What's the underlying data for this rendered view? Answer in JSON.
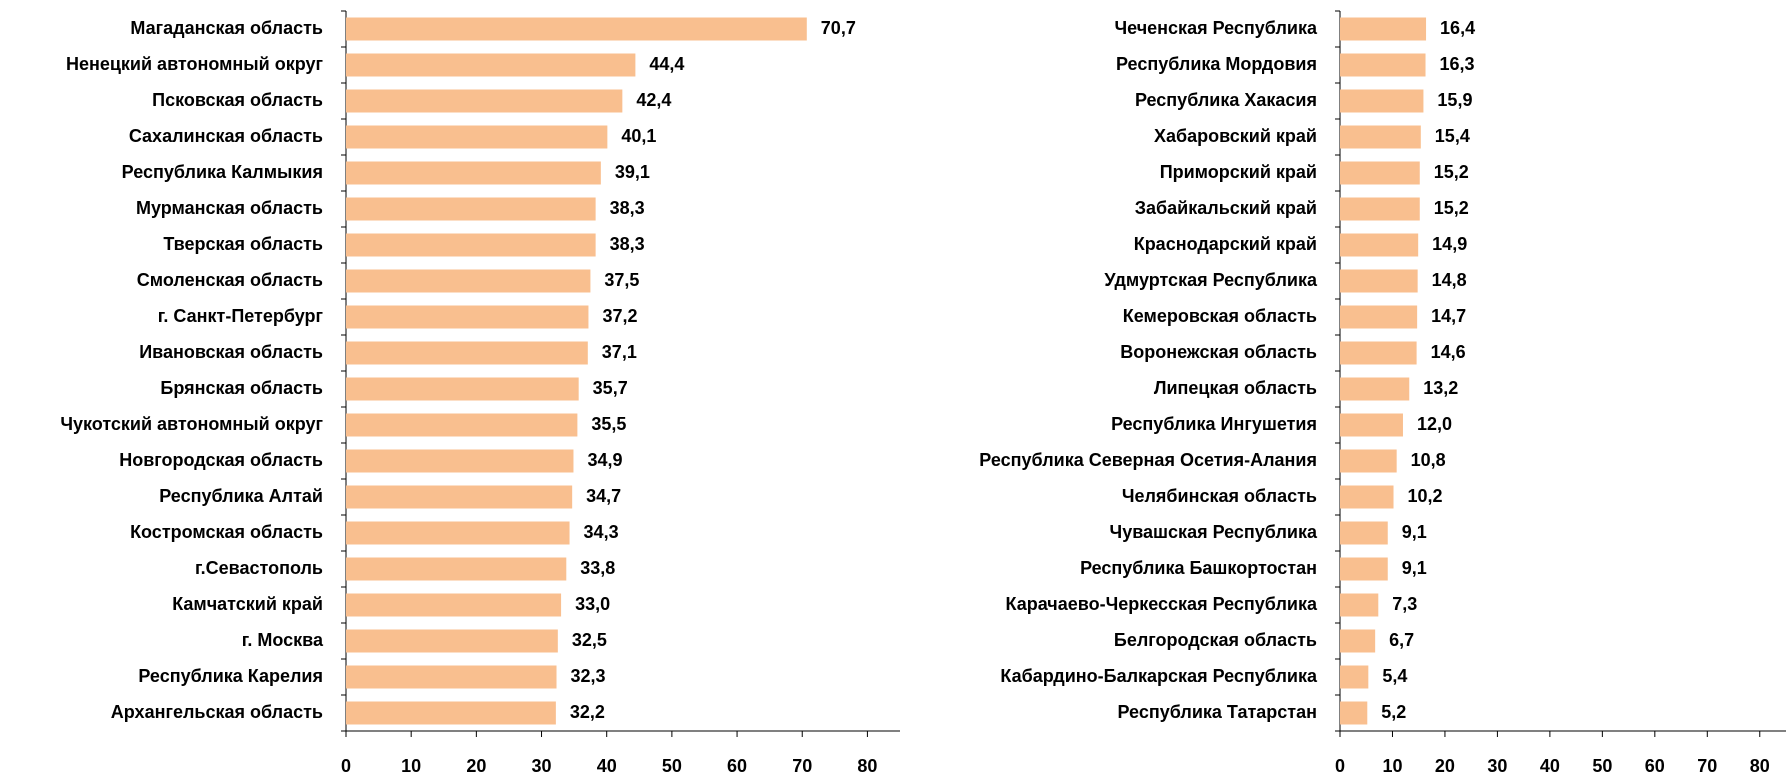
{
  "chart_data": [
    {
      "type": "bar",
      "orientation": "horizontal",
      "color": "#f9bf8f",
      "categories": [
        "Магаданская область",
        "Ненецкий автономный округ",
        "Псковская область",
        "Сахалинская область",
        "Республика Калмыкия",
        "Мурманская область",
        "Тверская область",
        "Смоленская область",
        "г. Санкт-Петербург",
        "Ивановская область",
        "Брянская область",
        "Чукотский автономный округ",
        "Новгородская область",
        "Республика Алтай",
        "Костромская область",
        "г.Севастополь",
        "Камчатский край",
        "г. Москва",
        "Республика Карелия",
        "Архангельская область"
      ],
      "values": [
        70.7,
        44.4,
        42.4,
        40.1,
        39.1,
        38.3,
        38.3,
        37.5,
        37.2,
        37.1,
        35.7,
        35.5,
        34.9,
        34.7,
        34.3,
        33.8,
        33.0,
        32.5,
        32.3,
        32.2
      ],
      "value_labels": [
        "70,7",
        "44,4",
        "42,4",
        "40,1",
        "39,1",
        "38,3",
        "38,3",
        "37,5",
        "37,2",
        "37,1",
        "35,7",
        "35,5",
        "34,9",
        "34,7",
        "34,3",
        "33,8",
        "33,0",
        "32,5",
        "32,3",
        "32,2"
      ],
      "xlim": [
        0,
        85
      ],
      "xticks": [
        0,
        10,
        20,
        30,
        40,
        50,
        60,
        70,
        80
      ]
    },
    {
      "type": "bar",
      "orientation": "horizontal",
      "color": "#f9bf8f",
      "categories": [
        "Чеченская Республика",
        "Республика Мордовия",
        "Республика Хакасия",
        "Хабаровский край",
        "Приморский край",
        "Забайкальский край",
        "Краснодарский край",
        "Удмуртская Республика",
        "Кемеровская область",
        "Воронежская область",
        "Липецкая область",
        "Республика Ингушетия",
        "Республика Северная  Осетия-Алания",
        "Челябинская область",
        "Чувашская Республика",
        "Республика Башкортостан",
        "Карачаево-Черкесская Республика",
        "Белгородская область",
        "Кабардино-Балкарская Республика",
        "Республика Татарстан"
      ],
      "values": [
        16.4,
        16.3,
        15.9,
        15.4,
        15.2,
        15.2,
        14.9,
        14.8,
        14.7,
        14.6,
        13.2,
        12.0,
        10.8,
        10.2,
        9.1,
        9.1,
        7.3,
        6.7,
        5.4,
        5.2
      ],
      "value_labels": [
        "16,4",
        "16,3",
        "15,9",
        "15,4",
        "15,2",
        "15,2",
        "14,9",
        "14,8",
        "14,7",
        "14,6",
        "13,2",
        "12,0",
        "10,8",
        "10,2",
        "9,1",
        "9,1",
        "7,3",
        "6,7",
        "5,4",
        "5,2"
      ],
      "xlim": [
        0,
        85
      ],
      "xticks": [
        0,
        10,
        20,
        30,
        40,
        50,
        60,
        70,
        80
      ]
    }
  ]
}
